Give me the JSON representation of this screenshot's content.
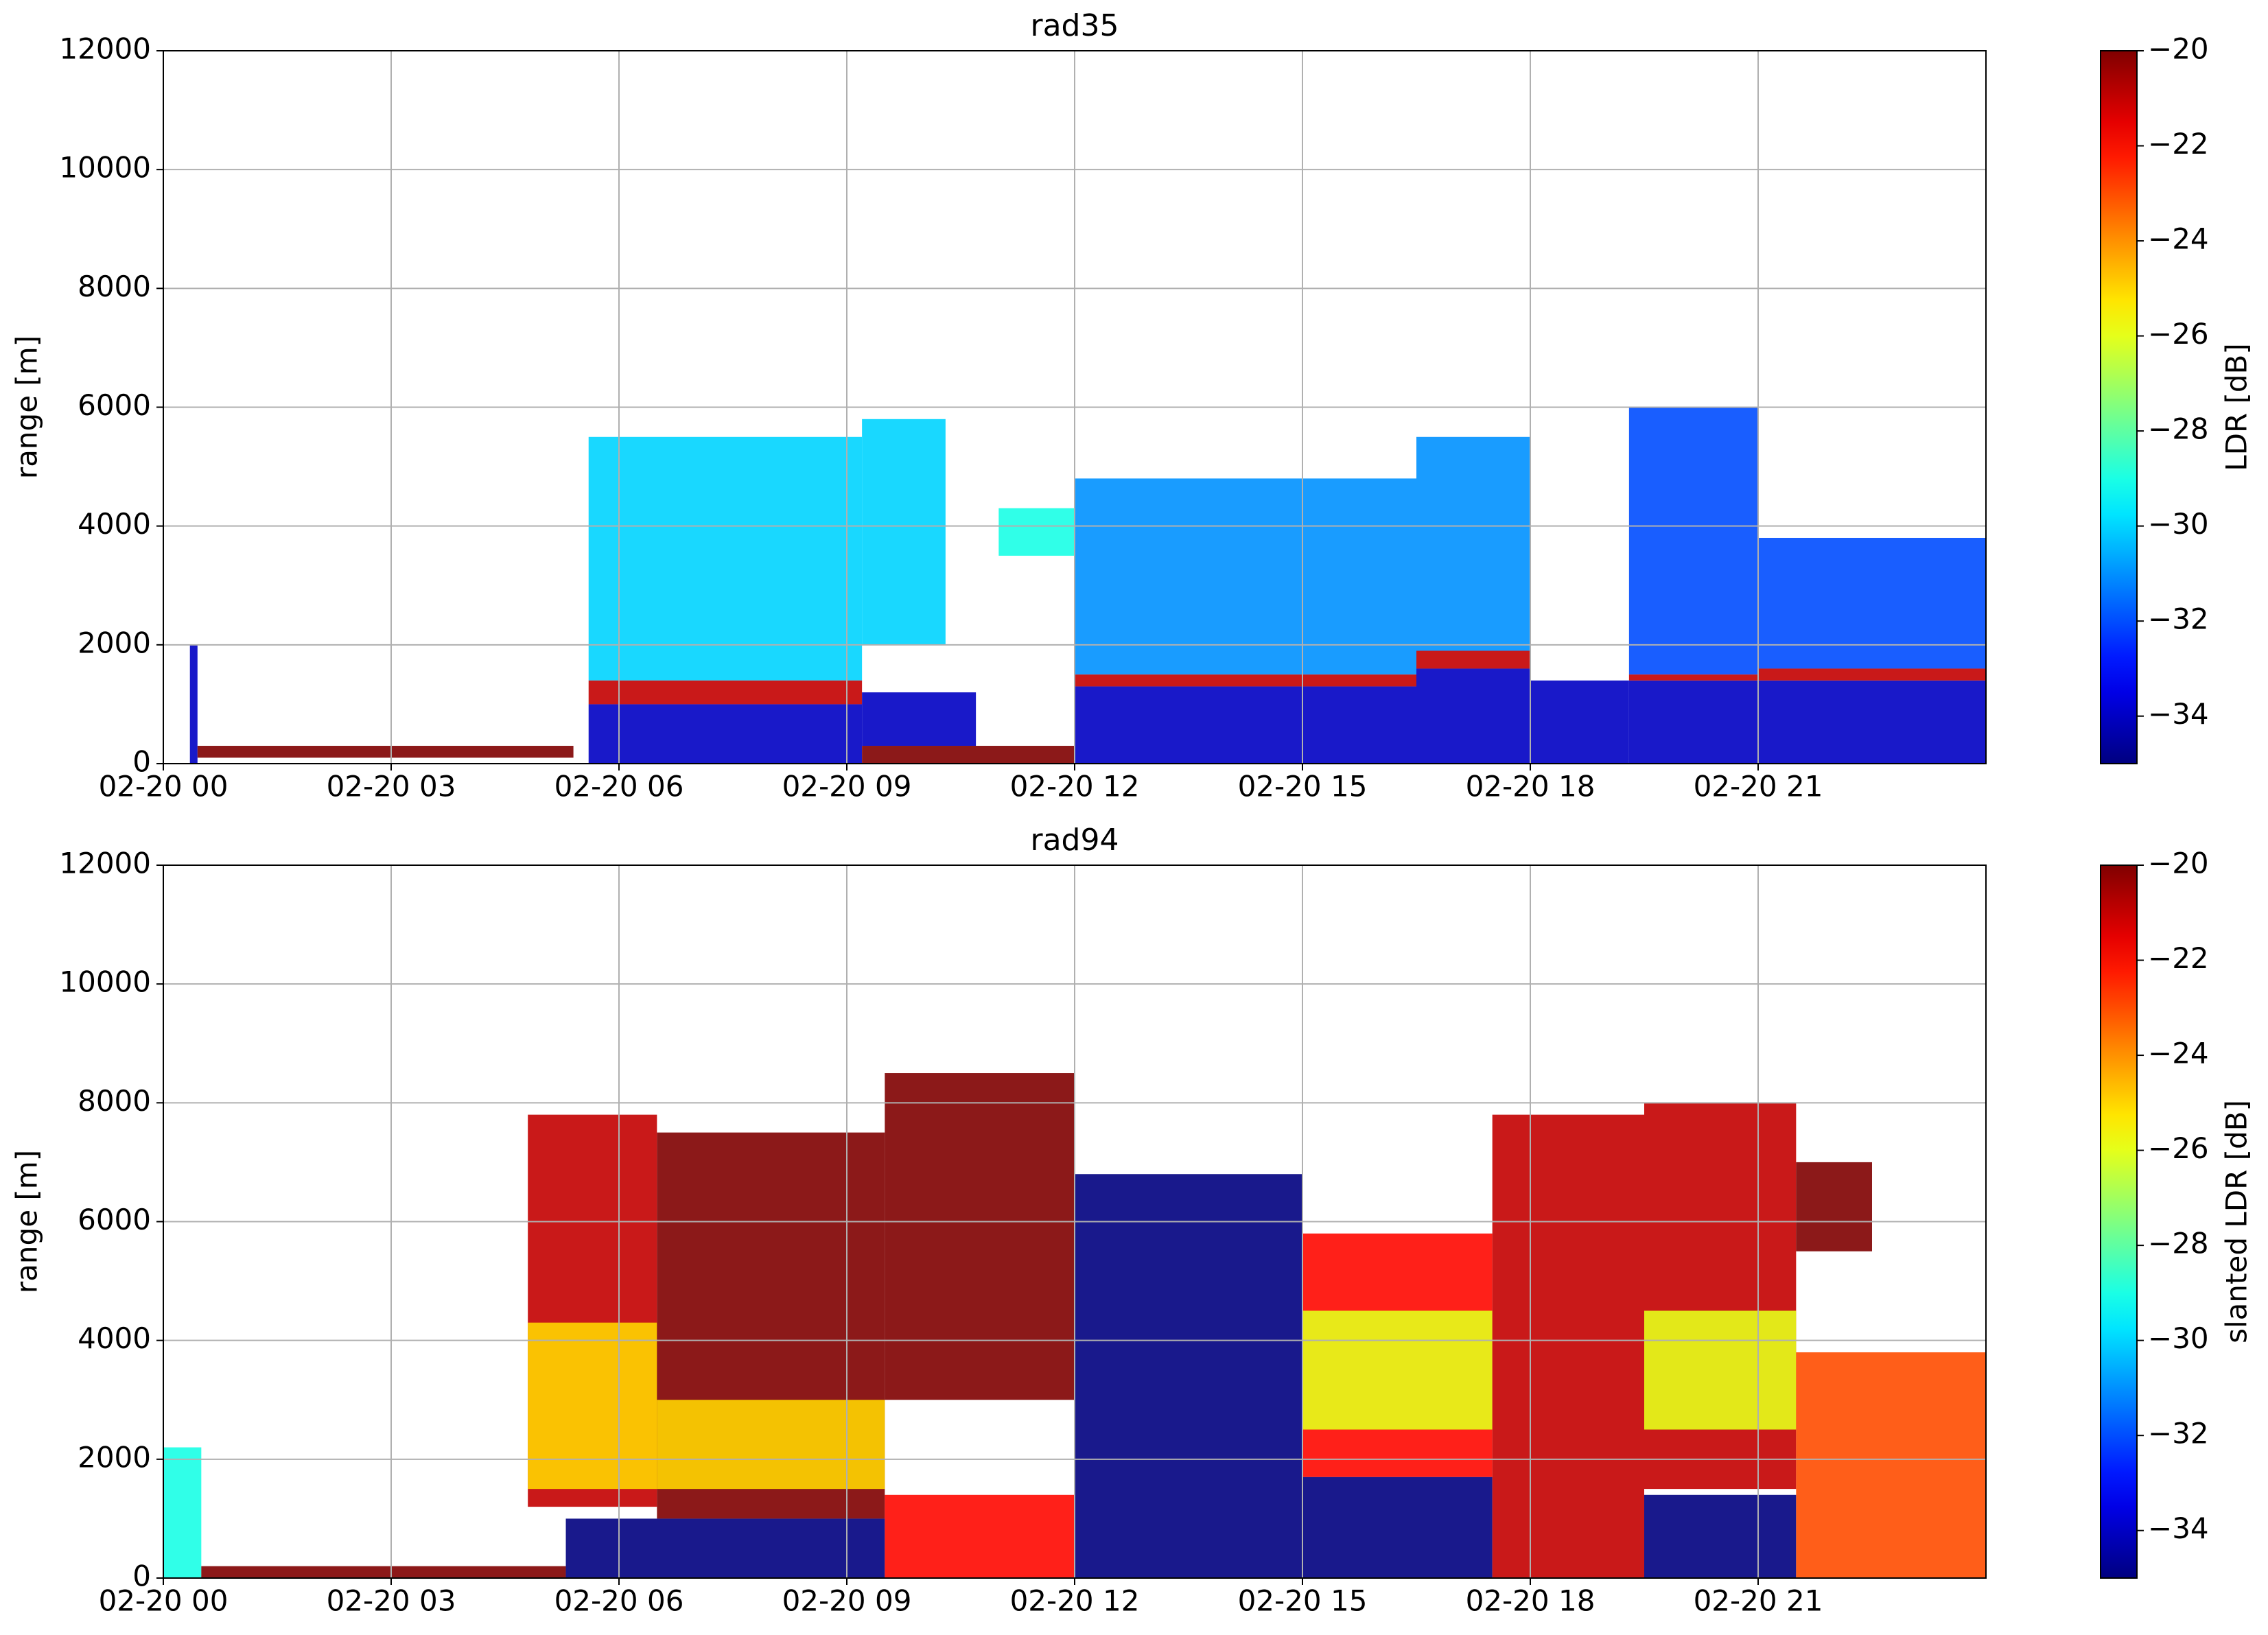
{
  "chart_data": [
    {
      "type": "heatmap",
      "title": "rad35",
      "y_label": "range [m]",
      "colorbar_label": "LDR [dB]",
      "xlim": [
        0,
        24
      ],
      "xticks": [
        {
          "value": 0,
          "label": "02-20 00"
        },
        {
          "value": 3,
          "label": "02-20 03"
        },
        {
          "value": 6,
          "label": "02-20 06"
        },
        {
          "value": 9,
          "label": "02-20 09"
        },
        {
          "value": 12,
          "label": "02-20 12"
        },
        {
          "value": 15,
          "label": "02-20 15"
        },
        {
          "value": 18,
          "label": "02-20 18"
        },
        {
          "value": 21,
          "label": "02-20 21"
        }
      ],
      "ylim": [
        0,
        12000
      ],
      "yticks": [
        0,
        2000,
        4000,
        6000,
        8000,
        10000,
        12000
      ],
      "clim": [
        -35,
        -20
      ],
      "cticks": [
        {
          "value": -20,
          "label": "−20"
        },
        {
          "value": -22,
          "label": "−22"
        },
        {
          "value": -24,
          "label": "−24"
        },
        {
          "value": -26,
          "label": "−26"
        },
        {
          "value": -28,
          "label": "−28"
        },
        {
          "value": -30,
          "label": "−30"
        },
        {
          "value": -32,
          "label": "−32"
        },
        {
          "value": -34,
          "label": "−34"
        }
      ],
      "colormap": "jet",
      "grid": true,
      "cells": [
        {
          "t": [
            0.35,
            0.45
          ],
          "z": [
            0,
            2000
          ],
          "value": -34
        },
        {
          "t": [
            0.45,
            5.4
          ],
          "z": [
            100,
            300
          ],
          "value": -20
        },
        {
          "t": [
            5.6,
            9.2
          ],
          "z": [
            1400,
            5500
          ],
          "value": -30
        },
        {
          "t": [
            5.6,
            9.2
          ],
          "z": [
            0,
            1000
          ],
          "value": -34
        },
        {
          "t": [
            5.6,
            9.2
          ],
          "z": [
            1000,
            1400
          ],
          "value": -21
        },
        {
          "t": [
            9.2,
            10.3
          ],
          "z": [
            2000,
            5800
          ],
          "value": -30
        },
        {
          "t": [
            9.2,
            10.7
          ],
          "z": [
            300,
            1200
          ],
          "value": -34
        },
        {
          "t": [
            9.2,
            12.0
          ],
          "z": [
            0,
            300
          ],
          "value": -20
        },
        {
          "t": [
            11.0,
            12.0
          ],
          "z": [
            3500,
            4300
          ],
          "value": -29
        },
        {
          "t": [
            12.0,
            16.5
          ],
          "z": [
            1500,
            4800
          ],
          "value": -31
        },
        {
          "t": [
            12.0,
            16.5
          ],
          "z": [
            0,
            1300
          ],
          "value": -34
        },
        {
          "t": [
            12.0,
            16.5
          ],
          "z": [
            1300,
            1500
          ],
          "value": -21
        },
        {
          "t": [
            16.5,
            18.0
          ],
          "z": [
            1900,
            5500
          ],
          "value": -31
        },
        {
          "t": [
            16.5,
            18.0
          ],
          "z": [
            0,
            1600
          ],
          "value": -34
        },
        {
          "t": [
            16.5,
            18.0
          ],
          "z": [
            1600,
            1900
          ],
          "value": -21
        },
        {
          "t": [
            18.0,
            19.3
          ],
          "z": [
            0,
            1400
          ],
          "value": -34
        },
        {
          "t": [
            19.3,
            21.0
          ],
          "z": [
            1500,
            6000
          ],
          "value": -32
        },
        {
          "t": [
            19.3,
            21.0
          ],
          "z": [
            0,
            1400
          ],
          "value": -34
        },
        {
          "t": [
            19.3,
            21.0
          ],
          "z": [
            1400,
            1500
          ],
          "value": -21
        },
        {
          "t": [
            21.0,
            24.0
          ],
          "z": [
            1600,
            3800
          ],
          "value": -32
        },
        {
          "t": [
            21.0,
            24.0
          ],
          "z": [
            0,
            1400
          ],
          "value": -34
        },
        {
          "t": [
            21.0,
            24.0
          ],
          "z": [
            1400,
            1600
          ],
          "value": -21
        }
      ]
    },
    {
      "type": "heatmap",
      "title": "rad94",
      "y_label": "range [m]",
      "colorbar_label": "slanted LDR [dB]",
      "xlim": [
        0,
        24
      ],
      "xticks": [
        {
          "value": 0,
          "label": "02-20 00"
        },
        {
          "value": 3,
          "label": "02-20 03"
        },
        {
          "value": 6,
          "label": "02-20 06"
        },
        {
          "value": 9,
          "label": "02-20 09"
        },
        {
          "value": 12,
          "label": "02-20 12"
        },
        {
          "value": 15,
          "label": "02-20 15"
        },
        {
          "value": 18,
          "label": "02-20 18"
        },
        {
          "value": 21,
          "label": "02-20 21"
        }
      ],
      "ylim": [
        0,
        12000
      ],
      "yticks": [
        0,
        2000,
        4000,
        6000,
        8000,
        10000,
        12000
      ],
      "clim": [
        -35,
        -20
      ],
      "cticks": [
        {
          "value": -20,
          "label": "−20"
        },
        {
          "value": -22,
          "label": "−22"
        },
        {
          "value": -24,
          "label": "−24"
        },
        {
          "value": -26,
          "label": "−26"
        },
        {
          "value": -28,
          "label": "−28"
        },
        {
          "value": -30,
          "label": "−30"
        },
        {
          "value": -32,
          "label": "−32"
        },
        {
          "value": -34,
          "label": "−34"
        }
      ],
      "colormap": "jet",
      "grid": true,
      "cells": [
        {
          "t": [
            0.0,
            0.5
          ],
          "z": [
            0,
            2200
          ],
          "value": -29
        },
        {
          "t": [
            0.5,
            5.3
          ],
          "z": [
            0,
            200
          ],
          "value": -20
        },
        {
          "t": [
            4.8,
            6.5
          ],
          "z": [
            1200,
            7800
          ],
          "value": -21
        },
        {
          "t": [
            4.8,
            6.5
          ],
          "z": [
            1500,
            4300
          ],
          "value": -25
        },
        {
          "t": [
            6.5,
            9.5
          ],
          "z": [
            1000,
            7500
          ],
          "value": -20
        },
        {
          "t": [
            6.5,
            9.5
          ],
          "z": [
            1500,
            3000
          ],
          "value": -25
        },
        {
          "t": [
            5.3,
            9.5
          ],
          "z": [
            0,
            1000
          ],
          "value": -35
        },
        {
          "t": [
            9.5,
            12.0
          ],
          "z": [
            3000,
            8500
          ],
          "value": -20
        },
        {
          "t": [
            9.5,
            12.0
          ],
          "z": [
            0,
            1400
          ],
          "value": -22
        },
        {
          "t": [
            12.0,
            15.0
          ],
          "z": [
            0,
            6800
          ],
          "value": -35
        },
        {
          "t": [
            15.0,
            17.5
          ],
          "z": [
            1700,
            5800
          ],
          "value": -22
        },
        {
          "t": [
            15.0,
            17.5
          ],
          "z": [
            2500,
            4500
          ],
          "value": -26
        },
        {
          "t": [
            15.0,
            17.5
          ],
          "z": [
            0,
            1700
          ],
          "value": -35
        },
        {
          "t": [
            17.5,
            19.5
          ],
          "z": [
            0,
            7800
          ],
          "value": -21
        },
        {
          "t": [
            19.5,
            21.5
          ],
          "z": [
            1500,
            8000
          ],
          "value": -21
        },
        {
          "t": [
            19.5,
            21.5
          ],
          "z": [
            2500,
            4500
          ],
          "value": -26
        },
        {
          "t": [
            19.5,
            21.5
          ],
          "z": [
            0,
            1400
          ],
          "value": -35
        },
        {
          "t": [
            21.5,
            24.0
          ],
          "z": [
            0,
            3800
          ],
          "value": -23
        },
        {
          "t": [
            21.5,
            22.5
          ],
          "z": [
            5500,
            7000
          ],
          "value": -20
        }
      ]
    }
  ]
}
